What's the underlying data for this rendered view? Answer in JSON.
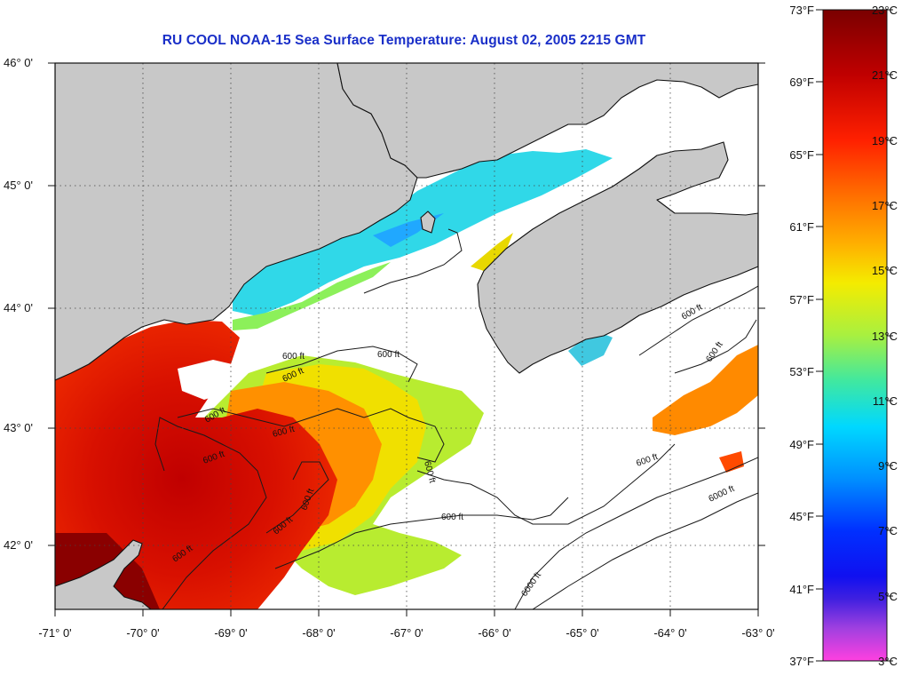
{
  "title": "RU COOL  NOAA-15  Sea Surface Temperature:  August 02, 2005 2215 GMT",
  "lon_ticks": [
    "-71° 0'",
    "-70° 0'",
    "-69° 0'",
    "-68° 0'",
    "-67° 0'",
    "-66° 0'",
    "-65° 0'",
    "-64° 0'",
    "-63° 0'"
  ],
  "lat_ticks": [
    "46° 0'",
    "45° 0'",
    "44° 0'",
    "43° 0'",
    "42° 0'"
  ],
  "colorbar": {
    "fahrenheit": [
      "73°F",
      "69°F",
      "65°F",
      "61°F",
      "57°F",
      "53°F",
      "49°F",
      "45°F",
      "41°F",
      "37°F"
    ],
    "celsius": [
      "23°C",
      "21°C",
      "19°C",
      "17°C",
      "15°C",
      "13°C",
      "11°C",
      "9°C",
      "7°C",
      "5°C",
      "3°C"
    ],
    "colors": [
      "#7a0000",
      "#c00000",
      "#ff2000",
      "#ff6a00",
      "#ffb000",
      "#e8f000",
      "#a8f040",
      "#40e8a0",
      "#00d8ff",
      "#0090ff",
      "#0030ff",
      "#4020e0",
      "#a040e0",
      "#ff40e0"
    ]
  },
  "contour_labels": [
    "600 ft",
    "600 ft",
    "600 ft",
    "600 ft",
    "600 ft",
    "600 ft",
    "600 ft",
    "600 ft",
    "600 ft",
    "600 ft",
    "600 ft",
    "600 ft",
    "600 ft",
    "600 ft",
    "6000 ft",
    "6000 ft"
  ],
  "colors": {
    "land": "#c8c8c8",
    "no_data": "#ffffff",
    "title": "#1a2fc8"
  }
}
